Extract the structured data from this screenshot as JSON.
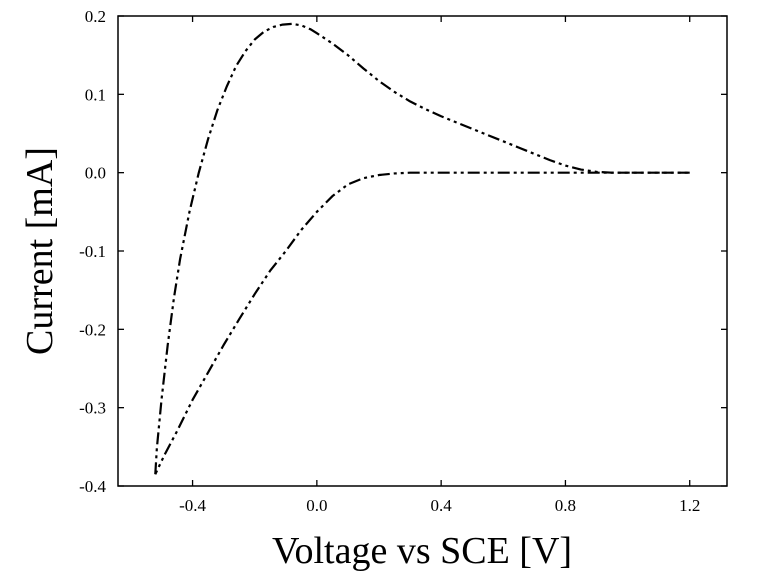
{
  "chart_data": {
    "type": "line",
    "title": "",
    "xlabel": "Voltage vs SCE [V]",
    "ylabel": "Current [mA]",
    "xlim": [
      -0.64,
      1.32
    ],
    "ylim": [
      -0.4,
      0.2
    ],
    "xticks": [
      -0.4,
      0.0,
      0.4,
      0.8,
      1.2
    ],
    "xtick_labels": [
      "-0.4",
      "0.0",
      "0.4",
      "0.8",
      "1.2"
    ],
    "yticks": [
      -0.4,
      -0.3,
      -0.2,
      -0.1,
      0.0,
      0.1,
      0.2
    ],
    "ytick_labels": [
      "-0.4",
      "-0.3",
      "-0.2",
      "-0.1",
      "0.0",
      "0.1",
      "0.2"
    ],
    "grid": false,
    "line_style": "dash-dot-dot",
    "line_color": "#000000",
    "series": [
      {
        "x": [
          -0.52,
          -0.515,
          -0.5,
          -0.48,
          -0.46,
          -0.44,
          -0.41,
          -0.38,
          -0.35,
          -0.32,
          -0.29,
          -0.26,
          -0.23,
          -0.2,
          -0.17,
          -0.14,
          -0.11,
          -0.08,
          -0.05,
          -0.02,
          0.0,
          0.05,
          0.1,
          0.15,
          0.2,
          0.25,
          0.3,
          0.35,
          0.4,
          0.45,
          0.5,
          0.55,
          0.6,
          0.65,
          0.7,
          0.75,
          0.8,
          0.85,
          0.9,
          0.95,
          1.0,
          1.05,
          1.1,
          1.15,
          1.2
        ],
        "y": [
          -0.385,
          -0.352,
          -0.29,
          -0.22,
          -0.16,
          -0.11,
          -0.05,
          0.0,
          0.043,
          0.08,
          0.11,
          0.136,
          0.155,
          0.17,
          0.18,
          0.186,
          0.189,
          0.19,
          0.188,
          0.183,
          0.178,
          0.165,
          0.15,
          0.133,
          0.117,
          0.103,
          0.091,
          0.081,
          0.072,
          0.064,
          0.056,
          0.048,
          0.04,
          0.032,
          0.024,
          0.016,
          0.009,
          0.004,
          0.001,
          0.0,
          0.0,
          0.0,
          0.0,
          0.0,
          0.0
        ]
      },
      {
        "x": [
          1.2,
          1.1,
          1.0,
          0.9,
          0.8,
          0.7,
          0.6,
          0.5,
          0.4,
          0.35,
          0.3,
          0.25,
          0.2,
          0.15,
          0.1,
          0.05,
          0.0,
          -0.05,
          -0.1,
          -0.15,
          -0.2,
          -0.25,
          -0.3,
          -0.35,
          -0.4,
          -0.45,
          -0.49,
          -0.52
        ],
        "y": [
          0.0,
          0.0,
          0.0,
          0.0,
          0.0,
          0.0,
          0.0,
          0.0,
          0.0,
          0.0,
          0.0,
          -0.001,
          -0.003,
          -0.007,
          -0.015,
          -0.03,
          -0.05,
          -0.073,
          -0.1,
          -0.125,
          -0.155,
          -0.187,
          -0.22,
          -0.255,
          -0.29,
          -0.33,
          -0.36,
          -0.385
        ]
      }
    ]
  }
}
